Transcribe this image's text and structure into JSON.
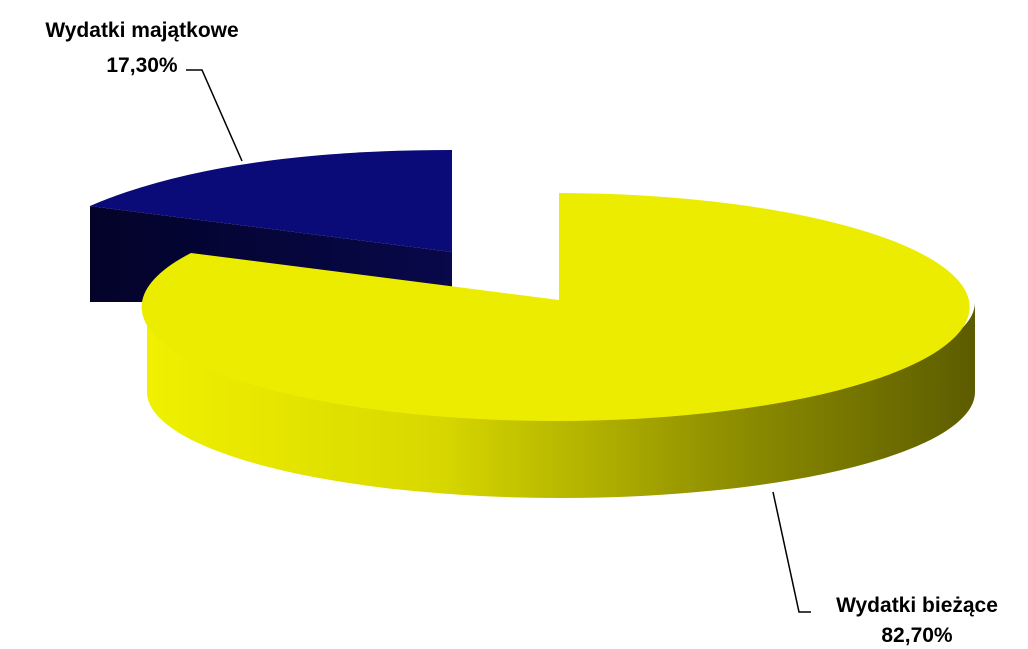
{
  "chart_data": {
    "type": "pie",
    "style": "3d-exploded",
    "title": "",
    "slices": [
      {
        "label": "Wydatki majątkowe",
        "value": 17.3,
        "value_label": "17,30%",
        "color": "#0a0a78",
        "side_color": "#050540"
      },
      {
        "label": "Wydatki bieżące",
        "value": 82.7,
        "value_label": "82,70%",
        "color": "#ecec00",
        "side_color": "#6a6a00"
      }
    ]
  }
}
